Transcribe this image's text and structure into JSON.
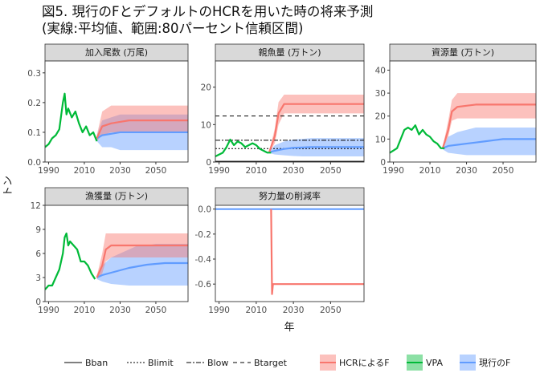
{
  "title_line1": "図5. 現行のFとデフォルトのHCRを用いた時の将来予測",
  "title_line2": "(実線:平均値、範囲:80パーセント信頼区間)",
  "colors": {
    "hcr": "#F8766D",
    "vpa": "#00BA38",
    "current": "#619CFF",
    "hcr_band": "#F8766D",
    "current_band": "#619CFF"
  },
  "chart_data": {
    "type": "line",
    "xlabel": "年",
    "ylabel": "トン",
    "xlim": [
      1988,
      2068
    ],
    "x_ticks": [
      1990,
      2010,
      2030,
      2050
    ],
    "legend": {
      "placement": "bottom",
      "linetypes": [
        "Bban",
        "Blimit",
        "Blow",
        "Btarget"
      ],
      "series": [
        "HCRによるF",
        "VPA",
        "現行のF"
      ]
    },
    "panels": [
      {
        "name": "加入尾数 (万尾)",
        "ylim": [
          0,
          0.34
        ],
        "y_ticks": [
          0.0,
          0.1,
          0.2,
          0.3
        ],
        "vpa": {
          "x": [
            1988,
            1990,
            1992,
            1994,
            1996,
            1998,
            1999,
            2000,
            2001,
            2003,
            2005,
            2007,
            2009,
            2011,
            2013,
            2015,
            2017
          ],
          "y": [
            0.05,
            0.06,
            0.08,
            0.09,
            0.11,
            0.2,
            0.23,
            0.16,
            0.18,
            0.15,
            0.17,
            0.13,
            0.1,
            0.12,
            0.09,
            0.1,
            0.07
          ]
        },
        "hcr": {
          "x": [
            2017,
            2020,
            2025,
            2030,
            2035,
            2040,
            2045,
            2050,
            2055,
            2060,
            2065,
            2068
          ],
          "mean": [
            0.08,
            0.12,
            0.13,
            0.135,
            0.14,
            0.14,
            0.14,
            0.14,
            0.14,
            0.14,
            0.14,
            0.14
          ],
          "lo": [
            0.07,
            0.09,
            0.1,
            0.1,
            0.1,
            0.1,
            0.1,
            0.1,
            0.1,
            0.1,
            0.1,
            0.1
          ],
          "hi": [
            0.09,
            0.17,
            0.19,
            0.19,
            0.19,
            0.19,
            0.19,
            0.19,
            0.19,
            0.19,
            0.19,
            0.19
          ]
        },
        "current": {
          "x": [
            2017,
            2020,
            2025,
            2030,
            2035,
            2040,
            2045,
            2050,
            2055,
            2060,
            2065,
            2068
          ],
          "mean": [
            0.08,
            0.09,
            0.095,
            0.1,
            0.1,
            0.1,
            0.1,
            0.1,
            0.1,
            0.1,
            0.1,
            0.1
          ],
          "lo": [
            0.07,
            0.05,
            0.05,
            0.04,
            0.04,
            0.04,
            0.04,
            0.04,
            0.04,
            0.04,
            0.04,
            0.04
          ],
          "hi": [
            0.09,
            0.14,
            0.15,
            0.16,
            0.16,
            0.16,
            0.16,
            0.16,
            0.16,
            0.16,
            0.16,
            0.16
          ]
        },
        "hlines": []
      },
      {
        "name": "親魚量 (万トン)",
        "ylim": [
          0,
          27
        ],
        "y_ticks": [
          0,
          10,
          20
        ],
        "vpa": {
          "x": [
            1988,
            1992,
            1994,
            1996,
            1998,
            2000,
            2002,
            2004,
            2006,
            2008,
            2010,
            2012,
            2014,
            2016,
            2018
          ],
          "y": [
            1.5,
            2.5,
            4,
            6,
            4.5,
            5.5,
            5,
            4,
            4.5,
            5,
            4.5,
            3.5,
            3,
            2.5,
            2.5
          ]
        },
        "hcr": {
          "x": [
            2017,
            2020,
            2022,
            2025,
            2030,
            2035,
            2040,
            2045,
            2050,
            2055,
            2060,
            2065,
            2068
          ],
          "mean": [
            2.6,
            7,
            13,
            15.5,
            15.5,
            15.5,
            15.5,
            15.5,
            15.5,
            15.5,
            15.5,
            15.5,
            15.5
          ],
          "lo": [
            2.4,
            5,
            10,
            13,
            13,
            13,
            13,
            13,
            13,
            13,
            13,
            13,
            13
          ],
          "hi": [
            2.8,
            9,
            16,
            18,
            18,
            18,
            18,
            18,
            18,
            18,
            18,
            18,
            18
          ]
        },
        "current": {
          "x": [
            2017,
            2020,
            2025,
            2030,
            2035,
            2040,
            2045,
            2050,
            2055,
            2060,
            2065,
            2068
          ],
          "mean": [
            2.6,
            3,
            3.5,
            3.8,
            3.9,
            4,
            4,
            4,
            4,
            4,
            4,
            4
          ],
          "lo": [
            2.4,
            2,
            1.8,
            1.6,
            1.5,
            1.5,
            1.5,
            1.5,
            1.5,
            1.5,
            1.5,
            1.5
          ],
          "hi": [
            2.8,
            4.5,
            5.5,
            6,
            6.2,
            6.4,
            6.4,
            6.4,
            6.4,
            6.4,
            6.4,
            6.4
          ]
        },
        "hlines": [
          {
            "kind": "Btarget",
            "value": 12.3
          },
          {
            "kind": "Blow",
            "value": 5.8
          },
          {
            "kind": "Blimit",
            "value": 3.6
          },
          {
            "kind": "Bban",
            "value": 0.2
          }
        ]
      },
      {
        "name": "資源量 (万トン)",
        "ylim": [
          0,
          44
        ],
        "y_ticks": [
          0,
          10,
          20,
          30,
          40
        ],
        "vpa": {
          "x": [
            1988,
            1992,
            1994,
            1996,
            1998,
            2000,
            2002,
            2004,
            2006,
            2008,
            2010,
            2012,
            2014,
            2016,
            2018
          ],
          "y": [
            4,
            6,
            10,
            14,
            15,
            14,
            16,
            12,
            14,
            12,
            11,
            9,
            8,
            6,
            6
          ]
        },
        "hcr": {
          "x": [
            2017,
            2020,
            2022,
            2025,
            2030,
            2035,
            2040,
            2045,
            2050,
            2055,
            2060,
            2065,
            2068
          ],
          "mean": [
            6,
            14,
            22,
            24,
            24.5,
            25,
            25,
            25,
            25,
            25,
            25,
            25,
            25
          ],
          "lo": [
            5.5,
            11,
            18,
            19,
            19,
            19,
            19,
            19,
            19,
            19,
            19,
            19,
            19
          ],
          "hi": [
            6.5,
            18,
            27,
            30,
            30,
            30,
            30,
            30,
            30,
            30,
            30,
            30,
            30
          ]
        },
        "current": {
          "x": [
            2017,
            2020,
            2025,
            2030,
            2035,
            2040,
            2045,
            2050,
            2055,
            2060,
            2065,
            2068
          ],
          "mean": [
            6,
            7,
            7.5,
            8,
            8.5,
            9,
            9.5,
            10,
            10,
            10,
            10,
            10
          ],
          "lo": [
            5.5,
            4,
            3.5,
            3,
            3,
            3,
            3,
            3,
            3,
            3,
            3,
            3
          ],
          "hi": [
            6.5,
            11,
            13,
            14,
            15,
            15,
            15,
            15,
            15,
            15,
            15,
            15
          ]
        },
        "hlines": []
      },
      {
        "name": "漁獲量 (万トン)",
        "ylim": [
          0,
          12
        ],
        "y_ticks": [
          0,
          3,
          6,
          9,
          12
        ],
        "vpa": {
          "x": [
            1988,
            1990,
            1992,
            1994,
            1996,
            1998,
            1999,
            2000,
            2001,
            2002,
            2004,
            2006,
            2008,
            2010,
            2012,
            2014,
            2016
          ],
          "y": [
            1.5,
            2,
            2,
            3,
            4,
            6,
            8,
            8.5,
            7,
            7.5,
            7,
            6.5,
            5,
            5,
            4.5,
            3.5,
            2.8
          ]
        },
        "hcr": {
          "x": [
            2017,
            2020,
            2022,
            2025,
            2030,
            2035,
            2040,
            2045,
            2050,
            2055,
            2060,
            2065,
            2068
          ],
          "mean": [
            3,
            4.5,
            6.5,
            7,
            7,
            7,
            7,
            7,
            7,
            7,
            7,
            7,
            7
          ],
          "lo": [
            2.8,
            3.5,
            5,
            5.5,
            5.5,
            5.5,
            5.5,
            5.5,
            5.5,
            5.5,
            5.5,
            5.5,
            5.5
          ],
          "hi": [
            3.2,
            6,
            8.5,
            8.5,
            8.5,
            8.5,
            8.5,
            8.5,
            8.5,
            8.5,
            8.5,
            8.5,
            8.5
          ]
        },
        "current": {
          "x": [
            2017,
            2020,
            2025,
            2030,
            2035,
            2040,
            2045,
            2050,
            2055,
            2060,
            2065,
            2068
          ],
          "mean": [
            3,
            3.3,
            3.6,
            3.9,
            4.2,
            4.4,
            4.6,
            4.7,
            4.8,
            4.8,
            4.8,
            4.8
          ],
          "lo": [
            2.8,
            2.5,
            2.2,
            2.1,
            2,
            2,
            2,
            2,
            2,
            2,
            2,
            2
          ],
          "hi": [
            3.2,
            4.5,
            5.5,
            6,
            6.5,
            7,
            7,
            7.2,
            7.2,
            7.2,
            7.2,
            7.2
          ]
        },
        "hlines": []
      },
      {
        "name": "努力量の削減率",
        "ylim": [
          -0.74,
          0.03
        ],
        "y_ticks": [
          0.0,
          -0.2,
          -0.4,
          -0.6
        ],
        "hcr": {
          "x": [
            2018,
            2018.5,
            2019,
            2020,
            2021,
            2025,
            2030,
            2035,
            2040,
            2045,
            2050,
            2055,
            2060,
            2065,
            2068
          ],
          "mean": [
            0,
            -0.68,
            -0.6,
            -0.6,
            -0.6,
            -0.6,
            -0.6,
            -0.6,
            -0.6,
            -0.6,
            -0.6,
            -0.6,
            -0.6,
            -0.6,
            -0.6
          ]
        },
        "current": {
          "x": [
            1988,
            2068
          ],
          "mean": [
            0,
            0
          ]
        },
        "hlines": []
      }
    ]
  }
}
